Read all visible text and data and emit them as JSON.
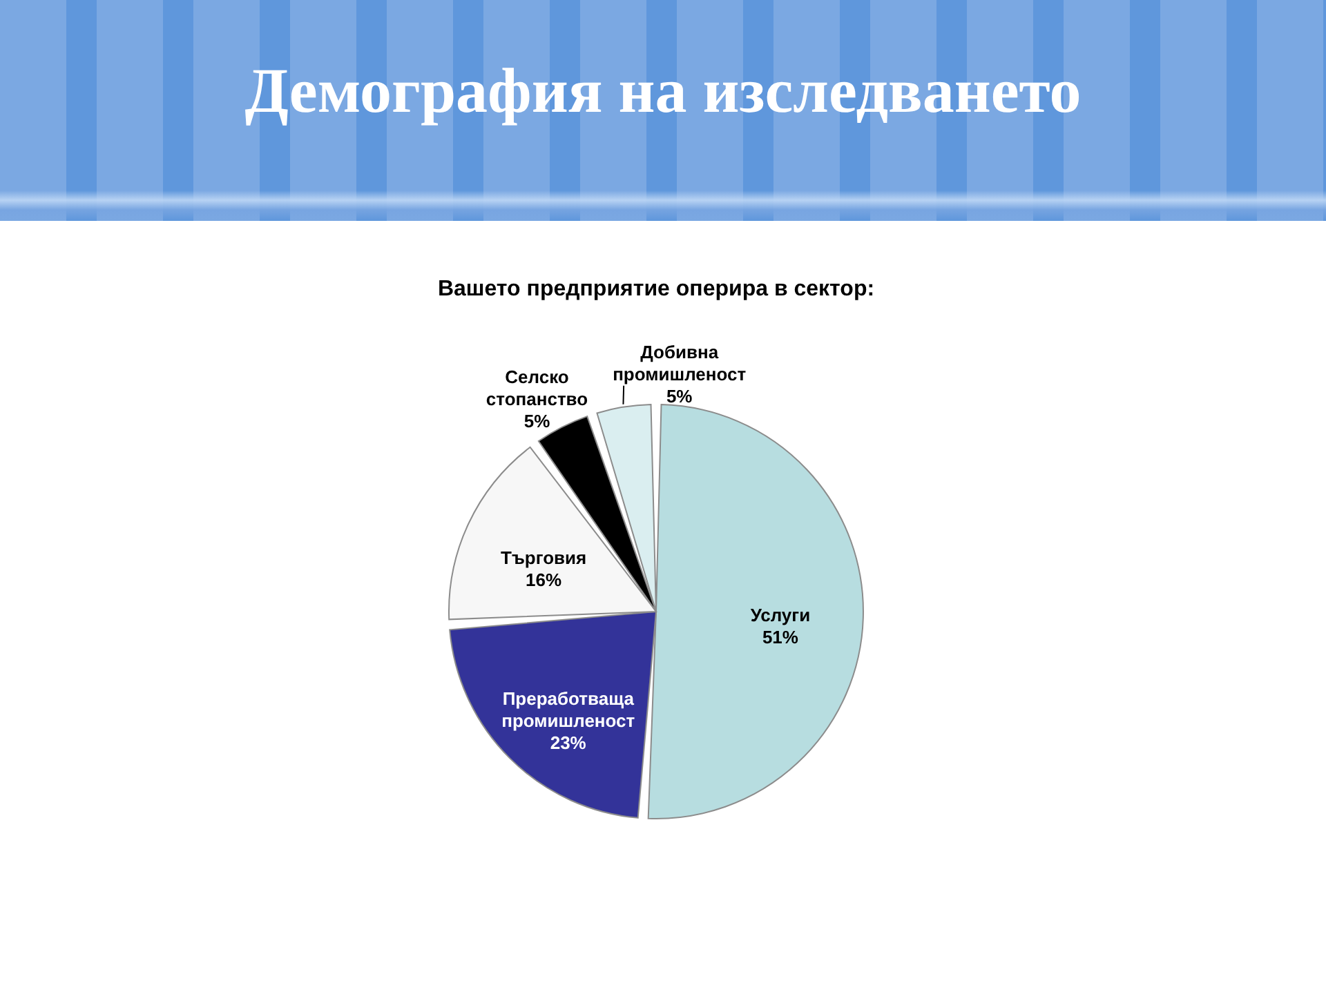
{
  "chart_data": {
    "type": "pie",
    "title": "Демография на изследването",
    "subtitle": "Вашето предприятие оперира в сектор:",
    "categories": [
      "Услуги",
      "Преработваща промишленост",
      "Търговия",
      "Селско стопанство",
      "Добивна промишленост"
    ],
    "values": [
      51,
      23,
      16,
      5,
      5
    ],
    "colors": [
      "#b7dde0",
      "#333399",
      "#f7f7f7",
      "#000000",
      "#daeef0"
    ],
    "value_labels": [
      "51%",
      "23%",
      "16%",
      "5%",
      "5%"
    ]
  }
}
